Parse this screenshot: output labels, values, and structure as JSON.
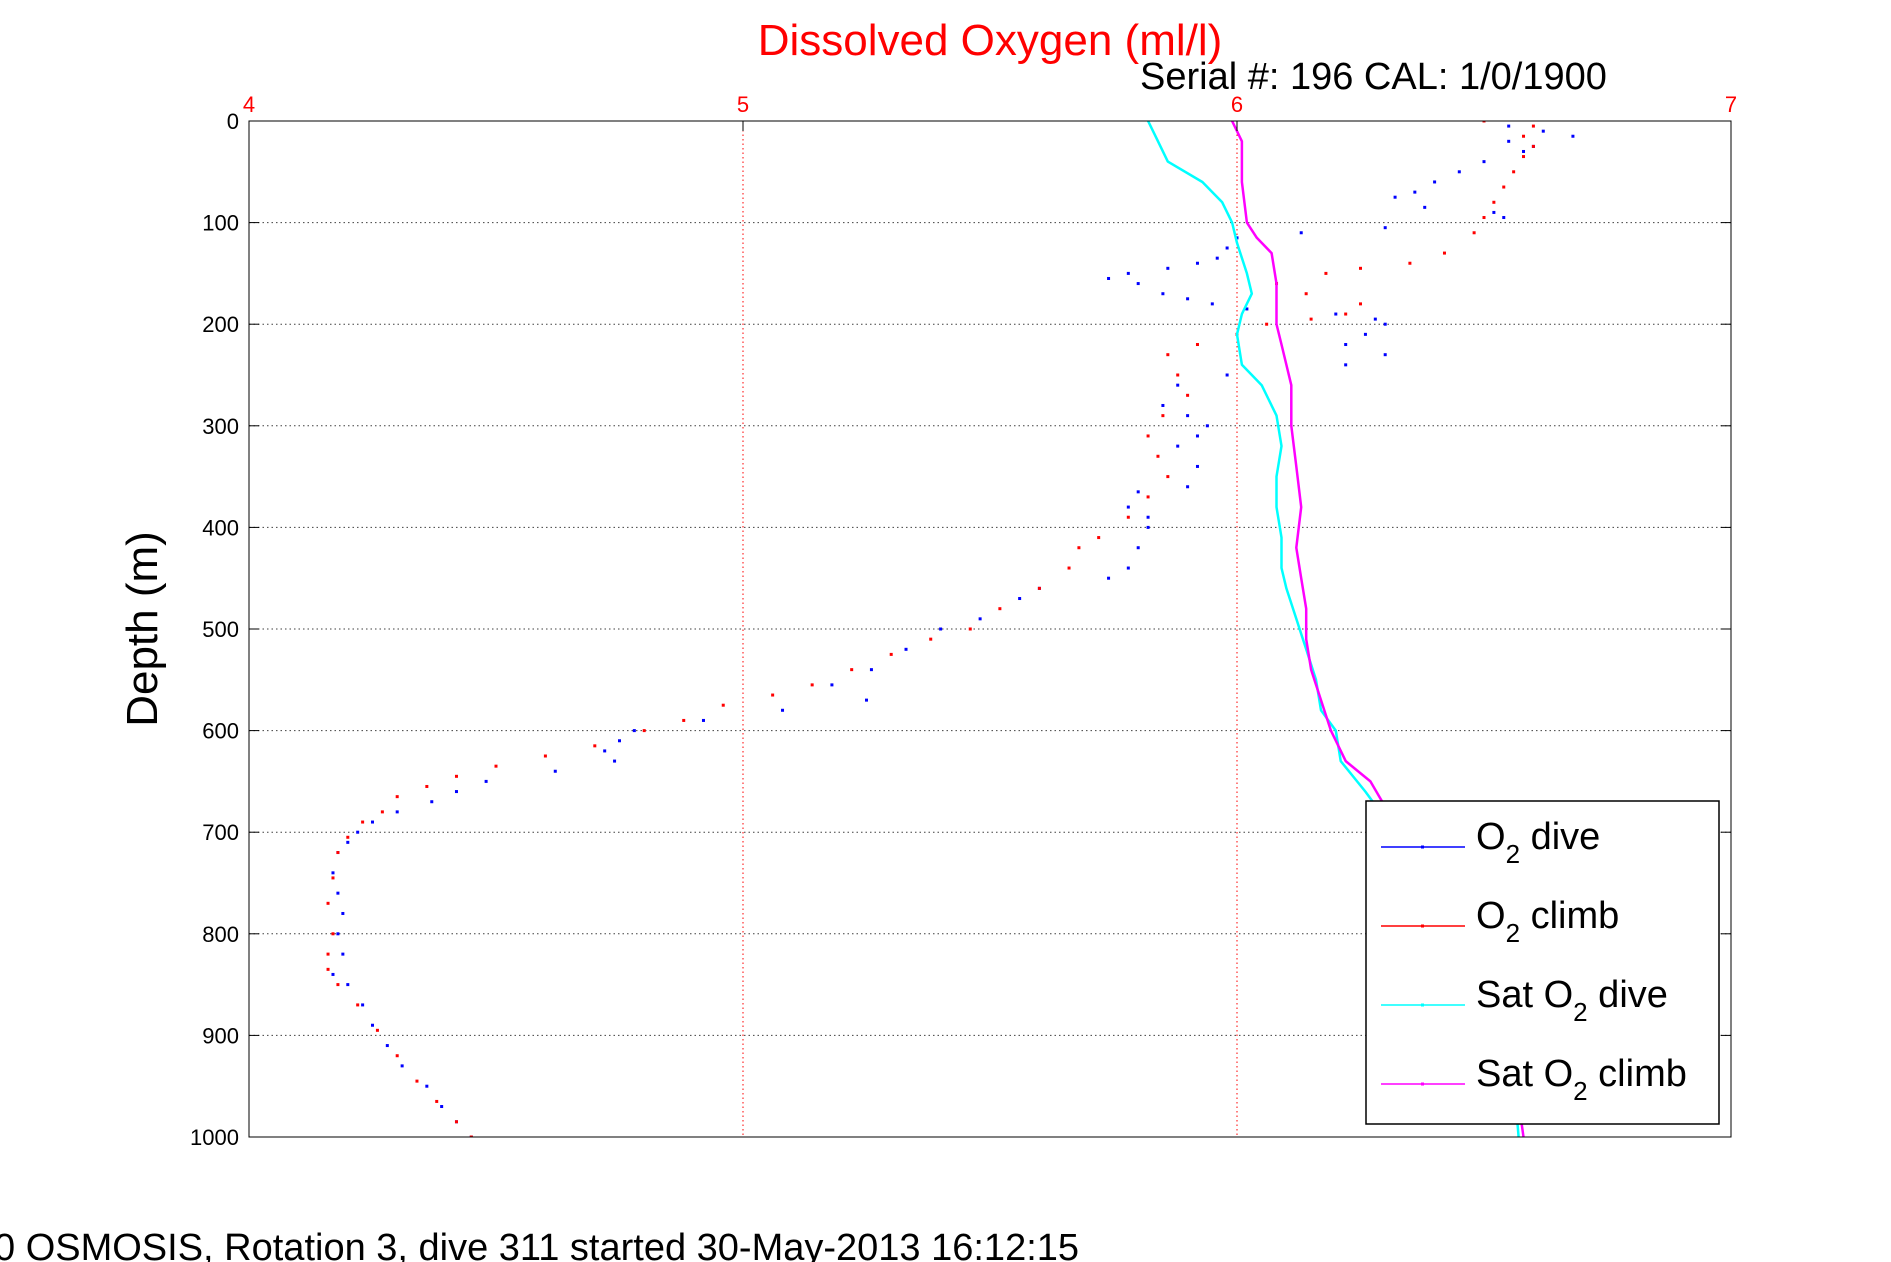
{
  "chart_data": {
    "type": "line",
    "title": "Dissolved Oxygen (ml/l)",
    "subtitle": "Serial #: 196  CAL: 1/0/1900",
    "footer": "0 OSMOSIS, Rotation 3, dive 311 started 30-May-2013 16:12:15",
    "xlabel": "",
    "ylabel": "Depth (m)",
    "xlim": [
      4,
      7
    ],
    "ylim": [
      0,
      1000
    ],
    "y_reversed": true,
    "x_axis_position": "top",
    "x_ticks": [
      "4",
      "5",
      "6",
      "7"
    ],
    "y_ticks": [
      "0",
      "100",
      "200",
      "300",
      "400",
      "500",
      "600",
      "700",
      "800",
      "900",
      "1000"
    ],
    "grid": true,
    "legend_position": "bottom-right",
    "colors": {
      "title": "#ff0000",
      "x_tick_labels": "#ff0000",
      "grid_vertical": "#ff0000",
      "grid_horizontal": "#000000"
    },
    "series": [
      {
        "name": "O2 dive",
        "legend_main": "O",
        "legend_sub": "2",
        "legend_tail": " dive",
        "color": "#0000ff",
        "style": "dots",
        "points": [
          [
            6.55,
            5
          ],
          [
            6.62,
            10
          ],
          [
            6.68,
            15
          ],
          [
            6.55,
            20
          ],
          [
            6.6,
            25
          ],
          [
            6.58,
            30
          ],
          [
            6.5,
            40
          ],
          [
            6.45,
            50
          ],
          [
            6.4,
            60
          ],
          [
            6.36,
            70
          ],
          [
            6.32,
            75
          ],
          [
            6.38,
            85
          ],
          [
            6.52,
            90
          ],
          [
            6.54,
            95
          ],
          [
            6.3,
            105
          ],
          [
            6.13,
            110
          ],
          [
            6.0,
            115
          ],
          [
            5.98,
            125
          ],
          [
            5.96,
            135
          ],
          [
            5.92,
            140
          ],
          [
            5.86,
            145
          ],
          [
            5.78,
            150
          ],
          [
            5.74,
            155
          ],
          [
            5.8,
            160
          ],
          [
            5.85,
            170
          ],
          [
            5.9,
            175
          ],
          [
            5.95,
            180
          ],
          [
            6.02,
            185
          ],
          [
            6.2,
            190
          ],
          [
            6.28,
            195
          ],
          [
            6.3,
            200
          ],
          [
            6.26,
            210
          ],
          [
            6.22,
            220
          ],
          [
            6.3,
            230
          ],
          [
            6.22,
            240
          ],
          [
            5.98,
            250
          ],
          [
            5.88,
            260
          ],
          [
            5.85,
            280
          ],
          [
            5.9,
            290
          ],
          [
            5.94,
            300
          ],
          [
            5.92,
            310
          ],
          [
            5.88,
            320
          ],
          [
            5.92,
            340
          ],
          [
            5.9,
            360
          ],
          [
            5.8,
            365
          ],
          [
            5.78,
            380
          ],
          [
            5.82,
            390
          ],
          [
            5.82,
            400
          ],
          [
            5.8,
            420
          ],
          [
            5.78,
            440
          ],
          [
            5.74,
            450
          ],
          [
            5.6,
            460
          ],
          [
            5.56,
            470
          ],
          [
            5.48,
            490
          ],
          [
            5.4,
            500
          ],
          [
            5.33,
            520
          ],
          [
            5.26,
            540
          ],
          [
            5.18,
            555
          ],
          [
            5.25,
            570
          ],
          [
            5.08,
            580
          ],
          [
            4.92,
            590
          ],
          [
            4.78,
            600
          ],
          [
            4.75,
            610
          ],
          [
            4.72,
            620
          ],
          [
            4.74,
            630
          ],
          [
            4.62,
            640
          ],
          [
            4.48,
            650
          ],
          [
            4.42,
            660
          ],
          [
            4.37,
            670
          ],
          [
            4.3,
            680
          ],
          [
            4.25,
            690
          ],
          [
            4.22,
            700
          ],
          [
            4.2,
            710
          ],
          [
            4.18,
            720
          ],
          [
            4.17,
            740
          ],
          [
            4.18,
            760
          ],
          [
            4.19,
            780
          ],
          [
            4.18,
            800
          ],
          [
            4.19,
            820
          ],
          [
            4.17,
            840
          ],
          [
            4.2,
            850
          ],
          [
            4.23,
            870
          ],
          [
            4.25,
            890
          ],
          [
            4.28,
            910
          ],
          [
            4.31,
            930
          ],
          [
            4.36,
            950
          ],
          [
            4.39,
            970
          ],
          [
            4.42,
            985
          ],
          [
            4.45,
            1000
          ]
        ]
      },
      {
        "name": "O2 climb",
        "legend_main": "O",
        "legend_sub": "2",
        "legend_tail": " climb",
        "color": "#ff0000",
        "style": "dots",
        "points": [
          [
            6.5,
            0
          ],
          [
            6.6,
            5
          ],
          [
            6.58,
            15
          ],
          [
            6.6,
            25
          ],
          [
            6.58,
            35
          ],
          [
            6.56,
            50
          ],
          [
            6.54,
            65
          ],
          [
            6.52,
            80
          ],
          [
            6.5,
            95
          ],
          [
            6.48,
            110
          ],
          [
            6.42,
            130
          ],
          [
            6.35,
            140
          ],
          [
            6.25,
            145
          ],
          [
            6.18,
            150
          ],
          [
            6.08,
            160
          ],
          [
            6.14,
            170
          ],
          [
            6.25,
            180
          ],
          [
            6.22,
            190
          ],
          [
            6.15,
            195
          ],
          [
            6.06,
            200
          ],
          [
            6.0,
            210
          ],
          [
            5.92,
            220
          ],
          [
            5.86,
            230
          ],
          [
            5.88,
            250
          ],
          [
            5.9,
            270
          ],
          [
            5.85,
            290
          ],
          [
            5.82,
            310
          ],
          [
            5.84,
            330
          ],
          [
            5.86,
            350
          ],
          [
            5.82,
            370
          ],
          [
            5.78,
            390
          ],
          [
            5.72,
            410
          ],
          [
            5.68,
            420
          ],
          [
            5.66,
            440
          ],
          [
            5.6,
            460
          ],
          [
            5.52,
            480
          ],
          [
            5.46,
            500
          ],
          [
            5.38,
            510
          ],
          [
            5.3,
            525
          ],
          [
            5.22,
            540
          ],
          [
            5.14,
            555
          ],
          [
            5.06,
            565
          ],
          [
            4.96,
            575
          ],
          [
            4.88,
            590
          ],
          [
            4.8,
            600
          ],
          [
            4.7,
            615
          ],
          [
            4.6,
            625
          ],
          [
            4.5,
            635
          ],
          [
            4.42,
            645
          ],
          [
            4.36,
            655
          ],
          [
            4.3,
            665
          ],
          [
            4.27,
            680
          ],
          [
            4.23,
            690
          ],
          [
            4.2,
            705
          ],
          [
            4.18,
            720
          ],
          [
            4.17,
            745
          ],
          [
            4.16,
            770
          ],
          [
            4.17,
            800
          ],
          [
            4.16,
            820
          ],
          [
            4.16,
            835
          ],
          [
            4.18,
            850
          ],
          [
            4.22,
            870
          ],
          [
            4.26,
            895
          ],
          [
            4.3,
            920
          ],
          [
            4.34,
            945
          ],
          [
            4.38,
            965
          ],
          [
            4.42,
            985
          ],
          [
            4.45,
            1000
          ]
        ]
      },
      {
        "name": "Sat O2 dive",
        "legend_main": "Sat O",
        "legend_sub": "2",
        "legend_tail": " dive",
        "color": "#00ffff",
        "style": "line",
        "points": [
          [
            5.82,
            0
          ],
          [
            5.84,
            20
          ],
          [
            5.86,
            40
          ],
          [
            5.93,
            60
          ],
          [
            5.97,
            80
          ],
          [
            5.99,
            100
          ],
          [
            6.0,
            120
          ],
          [
            6.02,
            150
          ],
          [
            6.03,
            170
          ],
          [
            6.01,
            190
          ],
          [
            6.0,
            210
          ],
          [
            6.01,
            240
          ],
          [
            6.05,
            260
          ],
          [
            6.08,
            290
          ],
          [
            6.09,
            320
          ],
          [
            6.08,
            350
          ],
          [
            6.08,
            380
          ],
          [
            6.09,
            410
          ],
          [
            6.09,
            440
          ],
          [
            6.1,
            460
          ],
          [
            6.12,
            490
          ],
          [
            6.14,
            520
          ],
          [
            6.16,
            550
          ],
          [
            6.17,
            580
          ],
          [
            6.2,
            600
          ],
          [
            6.21,
            630
          ],
          [
            6.26,
            660
          ],
          [
            6.32,
            700
          ],
          [
            6.4,
            760
          ],
          [
            6.48,
            830
          ],
          [
            6.53,
            880
          ],
          [
            6.56,
            940
          ],
          [
            6.57,
            1000
          ]
        ]
      },
      {
        "name": "Sat O2 climb",
        "legend_main": "Sat O",
        "legend_sub": "2",
        "legend_tail": " climb",
        "color": "#ff00ff",
        "style": "line",
        "points": [
          [
            5.99,
            0
          ],
          [
            6.01,
            20
          ],
          [
            6.01,
            60
          ],
          [
            6.02,
            100
          ],
          [
            6.04,
            115
          ],
          [
            6.07,
            130
          ],
          [
            6.08,
            160
          ],
          [
            6.08,
            200
          ],
          [
            6.09,
            220
          ],
          [
            6.11,
            260
          ],
          [
            6.11,
            300
          ],
          [
            6.12,
            340
          ],
          [
            6.13,
            380
          ],
          [
            6.12,
            420
          ],
          [
            6.13,
            450
          ],
          [
            6.14,
            480
          ],
          [
            6.14,
            510
          ],
          [
            6.15,
            540
          ],
          [
            6.17,
            570
          ],
          [
            6.19,
            600
          ],
          [
            6.22,
            630
          ],
          [
            6.27,
            650
          ],
          [
            6.33,
            700
          ],
          [
            6.42,
            780
          ],
          [
            6.5,
            860
          ],
          [
            6.56,
            930
          ],
          [
            6.58,
            1000
          ]
        ]
      }
    ]
  }
}
